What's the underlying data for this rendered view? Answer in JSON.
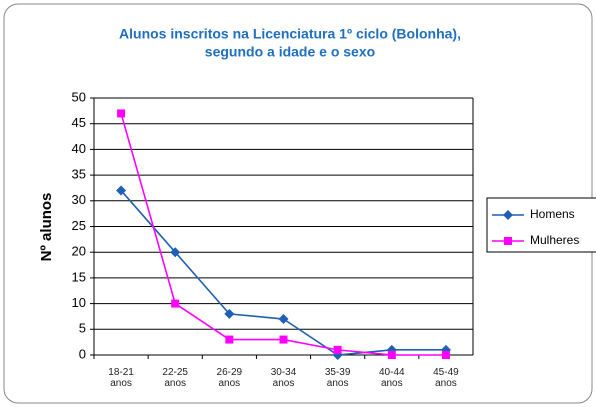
{
  "chart_data": {
    "type": "line",
    "title": [
      "Alunos inscritos na Licenciatura 1º ciclo (Bolonha),",
      "segundo a idade e o sexo"
    ],
    "y_label": "Nº alunos",
    "categories": [
      "18-21 anos",
      "22-25 anos",
      "26-29 anos",
      "30-34 anos",
      "35-39 anos",
      "40-44 anos",
      "45-49 anos"
    ],
    "series": [
      {
        "name": "Homens",
        "color": "#1f5fb4",
        "marker": "diamond",
        "values": [
          32,
          20,
          8,
          7,
          0,
          1,
          1
        ]
      },
      {
        "name": "Mulheres",
        "color": "#ff00ff",
        "marker": "square",
        "values": [
          47,
          10,
          3,
          3,
          1,
          0,
          0
        ]
      }
    ],
    "ylim": [
      0,
      50
    ],
    "yticks": [
      0,
      5,
      10,
      15,
      20,
      25,
      30,
      35,
      40,
      45,
      50
    ],
    "grid": true,
    "legend": "right"
  }
}
